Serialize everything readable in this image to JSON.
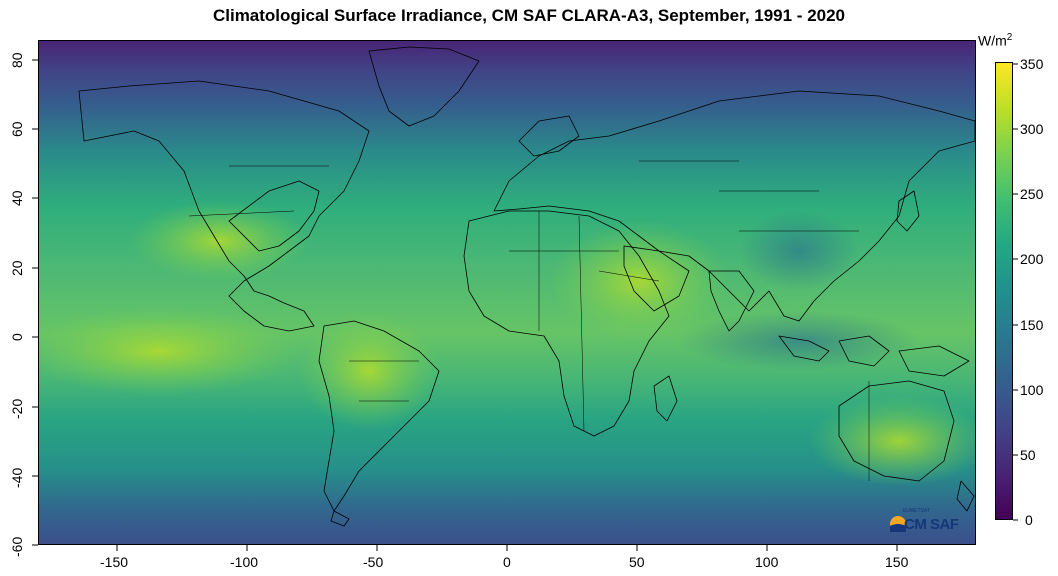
{
  "title": "Climatological Surface Irradiance, CM SAF CLARA-A3, September, 1991 - 2020",
  "units": {
    "base": "W/m",
    "exp": "2"
  },
  "logo": {
    "small_text": "EUMETSAT",
    "main_text": "CM SAF"
  },
  "x_axis": {
    "ticks": [
      "-150",
      "-100",
      "-50",
      "0",
      "50",
      "100",
      "150"
    ],
    "lim": [
      -180,
      180
    ]
  },
  "y_axis": {
    "ticks": [
      "80",
      "60",
      "40",
      "20",
      "0",
      "-20",
      "-40",
      "-60"
    ],
    "lim": [
      -60,
      85
    ]
  },
  "colorbar": {
    "ticks": [
      "350",
      "300",
      "250",
      "200",
      "150",
      "100",
      "50",
      "0"
    ],
    "range": [
      0,
      350
    ],
    "palette": [
      "#440154",
      "#482475",
      "#414487",
      "#355f8d",
      "#2a788e",
      "#21908d",
      "#22a884",
      "#42be71",
      "#7ad151",
      "#bddf26",
      "#fde725"
    ]
  },
  "map_layers": {
    "background": "irradiance field",
    "overlay": "coastlines and country borders"
  }
}
